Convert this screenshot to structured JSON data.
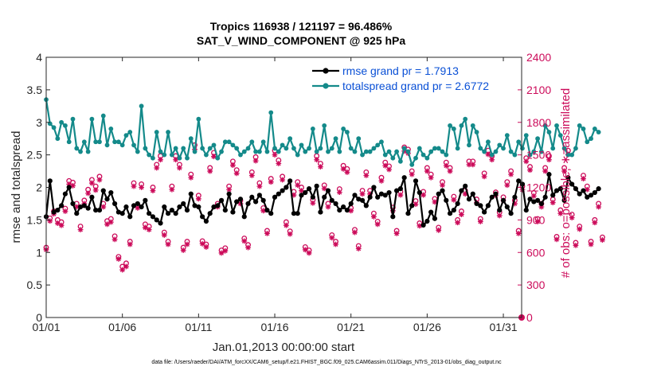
{
  "chart_data": {
    "type": "line",
    "title": "Tropics 116938 / 121197 = 96.486%",
    "subtitle": "SAT_V_WIND_COMPONENT @ 925 hPa",
    "xlabel": "Jan.01,2013 00:00:00 start",
    "ylabel": "rmse and totalspread",
    "ylabel_right": "# of obs: o=possible; ∗=assimilated",
    "footnote": "data file: /Users/raeder/DAI/ATM_forcXX/CAM6_setup/f.e21.FHIST_BGC.f09_025.CAM6assim.011/Diags_NTrS_2013-01/obs_diag_output.nc",
    "xlim": [
      1,
      32.2
    ],
    "ylim": [
      0,
      4
    ],
    "ylim_right": [
      0,
      2400
    ],
    "x_ticks": [
      1,
      6,
      11,
      16,
      21,
      26,
      31
    ],
    "x_tick_labels": [
      "01/01",
      "01/06",
      "01/11",
      "01/16",
      "01/21",
      "01/26",
      "01/31"
    ],
    "y_ticks": [
      0,
      0.5,
      1,
      1.5,
      2,
      2.5,
      3,
      3.5,
      4
    ],
    "y_tick_labels": [
      "0",
      "0.5",
      "1",
      "1.5",
      "2",
      "2.5",
      "3",
      "3.5",
      "4"
    ],
    "y_ticks_right": [
      0,
      300,
      600,
      900,
      1200,
      1500,
      1800,
      2100,
      2400
    ],
    "y_tick_labels_right": [
      "0",
      "300",
      "600",
      "900",
      "1200",
      "1500",
      "1800",
      "2100",
      "2400"
    ],
    "legend": [
      "rmse grand pr = 1.7913",
      "totalspread grand pr = 2.6772"
    ],
    "legend_position": "top-right",
    "x_start": 1,
    "x_step": 0.25,
    "series": [
      {
        "name": "rmse",
        "color": "#000000",
        "axis": "left",
        "marker": "hexagram",
        "values": [
          1.55,
          2.1,
          1.62,
          1.65,
          1.72,
          1.9,
          2.0,
          1.75,
          1.6,
          1.7,
          1.72,
          1.68,
          1.85,
          1.65,
          1.65,
          1.95,
          1.82,
          1.92,
          1.75,
          1.62,
          1.6,
          1.7,
          1.55,
          1.72,
          1.75,
          1.7,
          1.8,
          1.6,
          1.55,
          1.5,
          1.45,
          1.7,
          1.6,
          1.65,
          1.6,
          1.7,
          1.75,
          1.65,
          1.9,
          1.72,
          1.7,
          1.55,
          1.48,
          1.6,
          1.7,
          1.72,
          1.8,
          1.65,
          1.9,
          1.62,
          1.78,
          1.82,
          1.55,
          1.75,
          1.85,
          1.78,
          1.88,
          1.8,
          1.65,
          1.6,
          1.85,
          1.9,
          1.95,
          2.0,
          2.1,
          1.6,
          1.6,
          1.88,
          1.92,
          1.98,
          1.85,
          2.02,
          1.62,
          1.85,
          1.95,
          1.8,
          1.75,
          1.65,
          1.7,
          1.65,
          1.75,
          1.88,
          1.82,
          1.8,
          1.72,
          1.85,
          2.0,
          1.85,
          1.9,
          1.88,
          1.92,
          1.55,
          1.95,
          1.98,
          2.15,
          1.6,
          1.72,
          2.1,
          1.92,
          1.42,
          1.48,
          1.62,
          1.52,
          1.9,
          1.95,
          1.8,
          1.6,
          1.65,
          1.75,
          1.95,
          2.02,
          1.82,
          1.9,
          1.75,
          1.72,
          1.62,
          1.72,
          1.85,
          1.9,
          1.65,
          1.8,
          1.7,
          1.6,
          1.85,
          2.1,
          2.05,
          1.65,
          1.82,
          1.78,
          1.8,
          1.75,
          1.85,
          2.2,
          1.88,
          1.95,
          1.98,
          1.8,
          2.15,
          2.05,
          1.98,
          1.9,
          1.95,
          1.85,
          1.88,
          1.92,
          1.98
        ]
      },
      {
        "name": "totalspread",
        "color": "#148a8a",
        "axis": "left",
        "marker": "circle",
        "values": [
          3.35,
          2.98,
          2.92,
          2.75,
          3.0,
          2.95,
          2.7,
          3.05,
          2.6,
          2.55,
          2.7,
          2.55,
          3.05,
          2.7,
          2.7,
          3.1,
          2.65,
          2.9,
          2.7,
          2.7,
          2.65,
          2.8,
          2.85,
          2.65,
          2.55,
          3.25,
          2.6,
          2.5,
          2.45,
          2.85,
          2.55,
          2.5,
          2.85,
          2.5,
          2.6,
          2.45,
          2.6,
          2.45,
          2.75,
          2.55,
          3.05,
          2.6,
          2.5,
          2.6,
          2.65,
          2.45,
          2.55,
          2.7,
          2.7,
          2.65,
          2.6,
          2.5,
          2.55,
          2.6,
          2.7,
          2.55,
          2.55,
          2.7,
          2.55,
          3.15,
          2.6,
          2.55,
          2.65,
          2.6,
          2.75,
          2.6,
          2.5,
          2.65,
          2.55,
          2.6,
          2.9,
          2.55,
          2.6,
          2.95,
          2.55,
          2.6,
          2.75,
          2.55,
          2.9,
          2.85,
          2.6,
          2.55,
          2.75,
          2.5,
          2.55,
          2.55,
          2.6,
          2.65,
          2.7,
          2.5,
          2.55,
          2.45,
          2.55,
          2.4,
          2.6,
          2.55,
          2.35,
          2.45,
          2.6,
          2.5,
          2.45,
          2.55,
          2.6,
          2.6,
          2.55,
          2.5,
          2.95,
          2.9,
          2.6,
          2.95,
          3.05,
          2.65,
          2.95,
          2.85,
          2.6,
          2.55,
          2.7,
          2.5,
          2.55,
          2.65,
          2.6,
          2.8,
          2.55,
          2.5,
          2.7,
          2.6,
          2.8,
          2.5,
          2.55,
          2.75,
          2.55,
          2.95,
          2.85,
          2.6,
          2.95,
          2.8,
          2.6,
          2.5,
          2.5,
          2.6,
          2.95,
          2.9,
          2.7,
          2.75,
          2.9,
          2.85
        ]
      },
      {
        "name": "obs possible",
        "color": "#cc0b5a",
        "axis": "right",
        "marker": "o",
        "values": [
          645,
          915,
          980,
          900,
          880,
          1005,
          1260,
          1245,
          1050,
          840,
          1080,
          1180,
          1270,
          1210,
          1300,
          1050,
          890,
          910,
          750,
          560,
          470,
          500,
          700,
          1240,
          1040,
          1230,
          860,
          840,
          1200,
          1410,
          1490,
          785,
          700,
          1210,
          1490,
          1410,
          645,
          700,
          1320,
          1590,
          1125,
          705,
          675,
          1380,
          1520,
          1050,
          620,
          640,
          1210,
          1440,
          1360,
          1080,
          730,
          670,
          1340,
          1480,
          1240,
          1010,
          800,
          1280,
          1540,
          1450,
          1300,
          880,
          795,
          1160,
          1250,
          1200,
          650,
          620,
          1085,
          1490,
          1420,
          1220,
          1050,
          760,
          700,
          1185,
          1400,
          1370,
          1010,
          810,
          660,
          1170,
          1340,
          1170,
          960,
          885,
          1290,
          1430,
          1395,
          1015,
          800,
          1160,
          1570,
          1550,
          1350,
          1075,
          870,
          1160,
          1380,
          1320,
          1095,
          830,
          1250,
          1430,
          1380,
          1115,
          900,
          980,
          1170,
          1440,
          1440,
          1090,
          910,
          1330,
          1540,
          1490,
          1155,
          970,
          1110,
          1250,
          1350,
          1080,
          800,
          1210,
          1470,
          1390,
          1150,
          910,
          1050,
          1380,
          1490,
          1090,
          745,
          990,
          1380,
          1540,
          950,
          690,
          840,
          1310,
          1210,
          700,
          900,
          1050,
          740
        ]
      },
      {
        "name": "obs assimilated",
        "color": "#cc0b5a",
        "axis": "right",
        "marker": "asterisk",
        "values": [
          625,
          890,
          955,
          870,
          850,
          980,
          1230,
          1215,
          1020,
          810,
          1050,
          1145,
          1240,
          1175,
          1270,
          1020,
          860,
          880,
          720,
          540,
          440,
          470,
          675,
          1210,
          1010,
          1200,
          830,
          810,
          1170,
          1380,
          1455,
          760,
          675,
          1180,
          1455,
          1380,
          620,
          675,
          1290,
          1550,
          1095,
          680,
          650,
          1350,
          1485,
          1020,
          595,
          615,
          1180,
          1405,
          1330,
          1050,
          705,
          645,
          1310,
          1445,
          1210,
          985,
          775,
          1250,
          1500,
          1420,
          1270,
          850,
          770,
          1130,
          1220,
          1170,
          625,
          595,
          1055,
          1455,
          1390,
          1190,
          1020,
          735,
          675,
          1155,
          1370,
          1340,
          985,
          785,
          635,
          1140,
          1310,
          1140,
          930,
          860,
          1260,
          1400,
          1365,
          985,
          775,
          1130,
          1535,
          1515,
          1320,
          1045,
          845,
          1130,
          1350,
          1290,
          1065,
          805,
          1220,
          1400,
          1350,
          1085,
          875,
          950,
          1140,
          1410,
          1410,
          1060,
          885,
          1300,
          1505,
          1455,
          1125,
          940,
          1080,
          1220,
          1320,
          1050,
          775,
          1180,
          1440,
          1360,
          1120,
          885,
          1020,
          1350,
          1455,
          1060,
          720,
          960,
          1350,
          1505,
          920,
          665,
          815,
          1280,
          1180,
          675,
          875,
          1020,
          715
        ]
      }
    ]
  }
}
